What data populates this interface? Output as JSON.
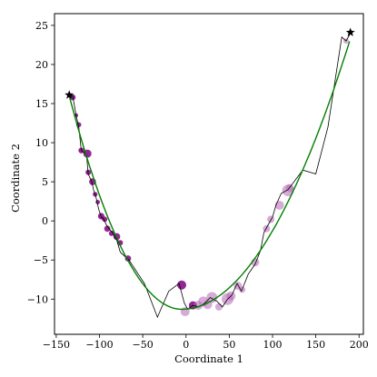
{
  "chart_data": {
    "type": "scatter",
    "title": "",
    "xlabel": "Coordinate 1",
    "ylabel": "Coordinate 2",
    "xlim": [
      -152,
      205
    ],
    "ylim": [
      -14.5,
      26.5
    ],
    "xticks": [
      -150,
      -100,
      -50,
      0,
      50,
      100,
      150,
      200
    ],
    "yticks": [
      -10,
      -5,
      0,
      5,
      10,
      15,
      20,
      25
    ],
    "grid": false,
    "legend": "none",
    "colors": {
      "fit": "#008000",
      "path": "#000000",
      "points_dark": "#800080",
      "points_light": "#b666b6"
    },
    "fit_curve": {
      "type": "parabola",
      "vertex": [
        -5,
        -11.3
      ],
      "through": [
        [
          -135,
          16
        ],
        [
          190,
          23.3
        ]
      ]
    },
    "path": [
      [
        -135,
        16
      ],
      [
        -131,
        16
      ],
      [
        -127,
        13.5
      ],
      [
        -124,
        12
      ],
      [
        -121,
        9
      ],
      [
        -115,
        8.5
      ],
      [
        -113,
        6
      ],
      [
        -109,
        5
      ],
      [
        -107,
        4
      ],
      [
        -104,
        3
      ],
      [
        -101,
        1.5
      ],
      [
        -98,
        0.5
      ],
      [
        -95,
        0.2
      ],
      [
        -92,
        -0.5
      ],
      [
        -89,
        -1
      ],
      [
        -85,
        -1.5
      ],
      [
        -80,
        -2.5
      ],
      [
        -76,
        -4
      ],
      [
        -71,
        -4.5
      ],
      [
        -66,
        -5
      ],
      [
        -48,
        -8
      ],
      [
        -33,
        -12.3
      ],
      [
        -20,
        -9
      ],
      [
        -8,
        -8
      ],
      [
        -2,
        -10.5
      ],
      [
        2,
        -11.3
      ],
      [
        8,
        -10.8
      ],
      [
        15,
        -11
      ],
      [
        22,
        -10.5
      ],
      [
        28,
        -9.8
      ],
      [
        36,
        -10.3
      ],
      [
        42,
        -11
      ],
      [
        48,
        -10
      ],
      [
        53,
        -9.5
      ],
      [
        59,
        -8
      ],
      [
        64,
        -9
      ],
      [
        72,
        -6.8
      ],
      [
        80,
        -5.5
      ],
      [
        86,
        -3.8
      ],
      [
        90,
        -1.5
      ],
      [
        95,
        -0.5
      ],
      [
        100,
        0.5
      ],
      [
        104,
        2
      ],
      [
        110,
        3.5
      ],
      [
        118,
        4
      ],
      [
        135,
        6.5
      ],
      [
        150,
        6
      ],
      [
        164,
        12
      ],
      [
        180,
        23.5
      ],
      [
        185,
        23
      ],
      [
        190,
        24
      ]
    ],
    "points": [
      {
        "x": -131,
        "y": 15.8,
        "r": 3.2,
        "tone": "dark"
      },
      {
        "x": -127,
        "y": 13.5,
        "r": 2.2,
        "tone": "dark"
      },
      {
        "x": -124,
        "y": 12.3,
        "r": 2.8,
        "tone": "dark"
      },
      {
        "x": -121,
        "y": 9.0,
        "r": 3.2,
        "tone": "dark"
      },
      {
        "x": -114,
        "y": 8.6,
        "r": 4.5,
        "tone": "dark"
      },
      {
        "x": -113,
        "y": 6.2,
        "r": 3.0,
        "tone": "dark"
      },
      {
        "x": -108,
        "y": 5.0,
        "r": 3.8,
        "tone": "dark"
      },
      {
        "x": -105,
        "y": 3.4,
        "r": 2.6,
        "tone": "dark"
      },
      {
        "x": -102,
        "y": 2.4,
        "r": 2.4,
        "tone": "dark"
      },
      {
        "x": -98,
        "y": 0.6,
        "r": 3.6,
        "tone": "dark"
      },
      {
        "x": -94,
        "y": 0.2,
        "r": 3.0,
        "tone": "dark"
      },
      {
        "x": -91,
        "y": -1.0,
        "r": 3.4,
        "tone": "dark"
      },
      {
        "x": -86,
        "y": -1.6,
        "r": 3.0,
        "tone": "dark"
      },
      {
        "x": -80,
        "y": -2.0,
        "r": 3.8,
        "tone": "dark"
      },
      {
        "x": -76,
        "y": -2.8,
        "r": 3.0,
        "tone": "dark"
      },
      {
        "x": -67,
        "y": -4.8,
        "r": 3.4,
        "tone": "dark"
      },
      {
        "x": -5,
        "y": -8.2,
        "r": 5.0,
        "tone": "dark"
      },
      {
        "x": -1,
        "y": -11.6,
        "r": 5.0,
        "tone": "light"
      },
      {
        "x": 8,
        "y": -10.8,
        "r": 4.5,
        "tone": "dark"
      },
      {
        "x": 14,
        "y": -10.8,
        "r": 5.0,
        "tone": "light"
      },
      {
        "x": 20,
        "y": -10.3,
        "r": 5.5,
        "tone": "light"
      },
      {
        "x": 25,
        "y": -10.7,
        "r": 5.0,
        "tone": "light"
      },
      {
        "x": 30,
        "y": -9.8,
        "r": 6.0,
        "tone": "light"
      },
      {
        "x": 38,
        "y": -11.0,
        "r": 4.0,
        "tone": "light"
      },
      {
        "x": 48,
        "y": -10.0,
        "r": 6.5,
        "tone": "light"
      },
      {
        "x": 52,
        "y": -9.6,
        "r": 5.0,
        "tone": "light"
      },
      {
        "x": 60,
        "y": -8.3,
        "r": 4.5,
        "tone": "light"
      },
      {
        "x": 65,
        "y": -8.8,
        "r": 3.5,
        "tone": "light"
      },
      {
        "x": 80,
        "y": -5.3,
        "r": 4.5,
        "tone": "light"
      },
      {
        "x": 93,
        "y": -1.0,
        "r": 4.0,
        "tone": "light"
      },
      {
        "x": 98,
        "y": 0.2,
        "r": 4.0,
        "tone": "light"
      },
      {
        "x": 108,
        "y": 2.0,
        "r": 5.0,
        "tone": "light"
      },
      {
        "x": 118,
        "y": 3.9,
        "r": 6.5,
        "tone": "light"
      },
      {
        "x": 120,
        "y": 4.2,
        "r": 4.5,
        "tone": "light"
      },
      {
        "x": 185,
        "y": 23.0,
        "r": 3.0,
        "tone": "light"
      }
    ],
    "stars": [
      {
        "x": -135,
        "y": 16.1
      },
      {
        "x": 190,
        "y": 24.1
      }
    ]
  }
}
